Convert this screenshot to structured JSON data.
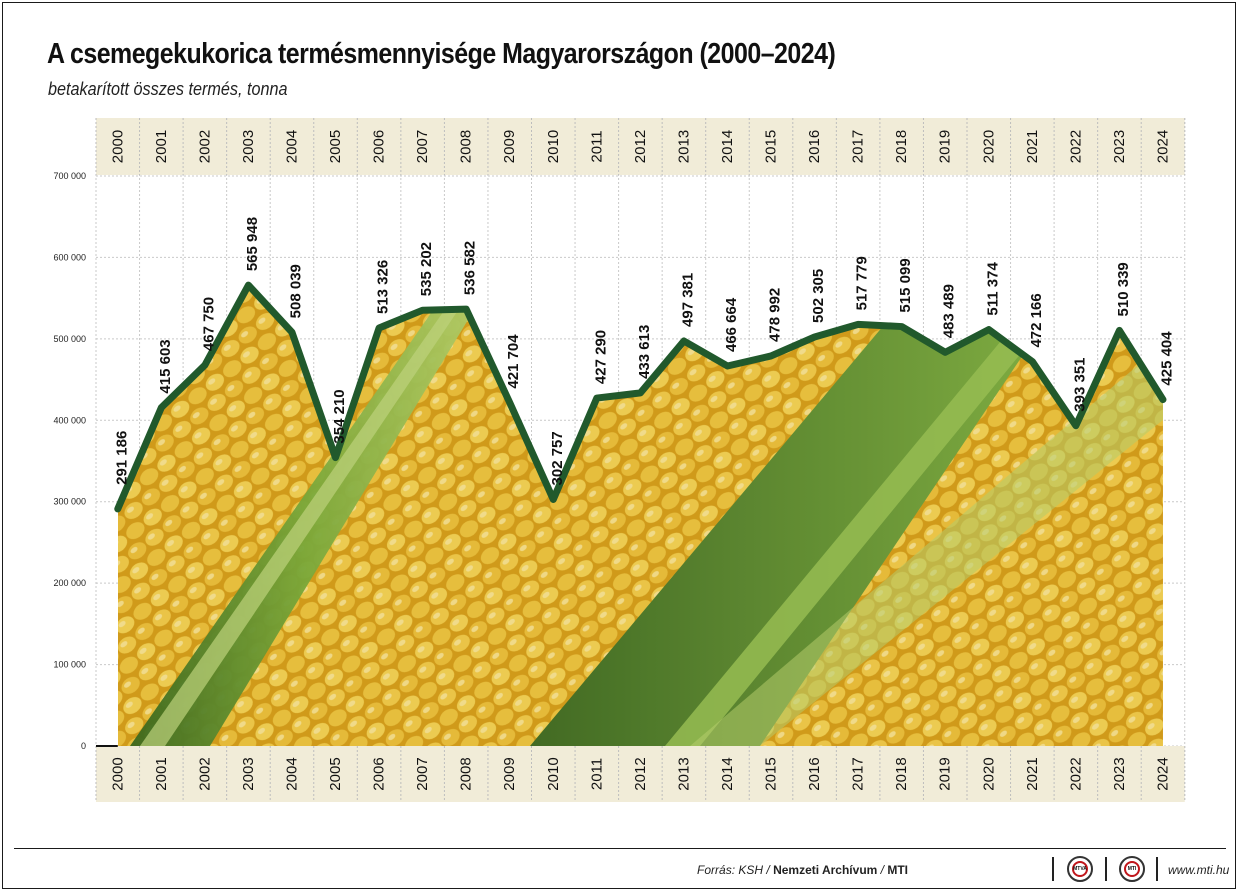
{
  "header": {
    "title": "A csemegekukorica termésmennyisége Magyarországon (2000–2024)",
    "subtitle": "betakarított összes termés, tonna"
  },
  "footer": {
    "source_prefix": "Forrás: KSH / ",
    "source_bold": "Nemzeti Archívum",
    "source_sep": " / ",
    "source_mti": "MTI",
    "logo1_text": "MTVA",
    "logo2_text": "MTI",
    "website": "www.mti.hu"
  },
  "colors": {
    "line": "#21592c",
    "band": "#f1ecd8",
    "corn": "#e8b62a",
    "husk": "#7fae3c"
  },
  "chart_data": {
    "type": "line",
    "title": "A csemegekukorica termésmennyisége Magyarországon (2000–2024)",
    "subtitle": "betakarított összes termés, tonna",
    "x": [
      "2000",
      "2001",
      "2002",
      "2003",
      "2004",
      "2005",
      "2006",
      "2007",
      "2008",
      "2009",
      "2010",
      "2011",
      "2012",
      "2013",
      "2014",
      "2015",
      "2016",
      "2017",
      "2018",
      "2019",
      "2020",
      "2021",
      "2022",
      "2023",
      "2024"
    ],
    "series": [
      {
        "values": [
          291186,
          415603,
          467750,
          565948,
          508039,
          354210,
          513326,
          535202,
          536582,
          421704,
          302757,
          427290,
          433613,
          497381,
          466664,
          478992,
          502305,
          517779,
          515099,
          483489,
          511374,
          472166,
          393351,
          510339,
          425404
        ]
      }
    ],
    "data_labels": [
      "291 186",
      "415 603",
      "467 750",
      "565 948",
      "508 039",
      "354 210",
      "513 326",
      "535 202",
      "536 582",
      "421 704",
      "302 757",
      "427 290",
      "433 613",
      "497 381",
      "466 664",
      "478 992",
      "502 305",
      "517 779",
      "515 099",
      "483 489",
      "511 374",
      "472 166",
      "393 351",
      "510 339",
      "425 404"
    ],
    "yticks": [
      0,
      100000,
      200000,
      300000,
      400000,
      500000,
      600000,
      700000
    ],
    "ytick_labels": [
      "0",
      "100 000",
      "200 000",
      "300 000",
      "400 000",
      "500 000",
      "600 000",
      "700 000"
    ],
    "ylim": [
      0,
      700000
    ],
    "grid": true
  }
}
